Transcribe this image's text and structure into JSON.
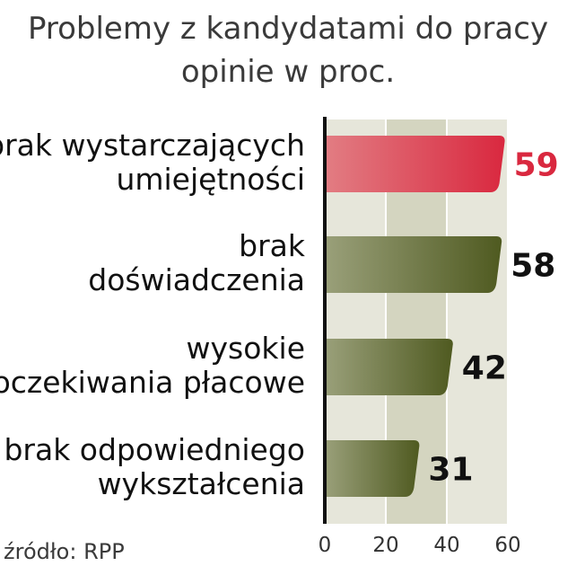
{
  "title": {
    "line1": "Problemy z kandydatami do pracy",
    "line2": "opinie w proc."
  },
  "source": "źródło: RPP",
  "colors": {
    "highlight": "#d9283f",
    "bar_dark": "#4f5a20",
    "bar_light": "#9aa07a",
    "highlight_light": "#e27d83",
    "band": "#e6e6da",
    "band_dark": "#d4d5c0"
  },
  "chart_data": {
    "type": "bar",
    "orientation": "horizontal",
    "categories": [
      [
        "brak wystarczających",
        "umiejętności"
      ],
      [
        "brak",
        "doświadczenia"
      ],
      [
        "wysokie",
        "oczekiwania płacowe"
      ],
      [
        "brak odpowiedniego",
        "wykształcenia"
      ]
    ],
    "values": [
      59,
      58,
      42,
      31
    ],
    "value_labels": [
      "59",
      "58",
      "42",
      "31"
    ],
    "highlight_index": 0,
    "xlim": [
      0,
      60
    ],
    "xticks": [
      "0",
      "20",
      "40",
      "60"
    ],
    "grid": true
  }
}
